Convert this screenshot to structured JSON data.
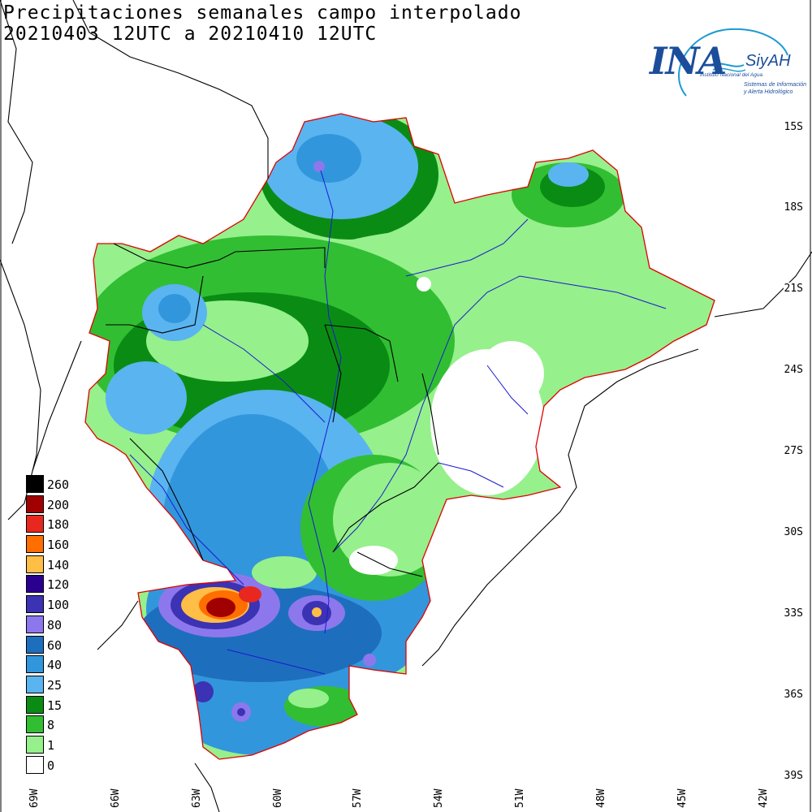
{
  "title": {
    "line1": "Precipitaciones semanales campo interpolado",
    "line2": "20210403 12UTC a 20210410 12UTC"
  },
  "logo": {
    "name": "INA",
    "system": "SiyAH",
    "institution": "Instituto Nacional del Agua",
    "tagline1": "Sistemas de Información",
    "tagline2": "y Alerta Hidrológico"
  },
  "latitude_labels": [
    "15S",
    "18S",
    "21S",
    "24S",
    "27S",
    "30S",
    "33S",
    "36S",
    "39S"
  ],
  "longitude_labels": [
    "69W",
    "66W",
    "63W",
    "60W",
    "57W",
    "54W",
    "51W",
    "48W",
    "45W",
    "42W"
  ],
  "legend": [
    {
      "label": "260",
      "color": "#000000"
    },
    {
      "label": "200",
      "color": "#a00000"
    },
    {
      "label": "180",
      "color": "#e8281e"
    },
    {
      "label": "160",
      "color": "#ff6e00"
    },
    {
      "label": "140",
      "color": "#ffbe46"
    },
    {
      "label": "120",
      "color": "#2a0090"
    },
    {
      "label": "100",
      "color": "#3c32b4"
    },
    {
      "label": "80",
      "color": "#8c78ec"
    },
    {
      "label": "60",
      "color": "#1e6ebe"
    },
    {
      "label": "40",
      "color": "#3296dc"
    },
    {
      "label": "25",
      "color": "#5ab4f0"
    },
    {
      "label": "15",
      "color": "#0a8c14"
    },
    {
      "label": "8",
      "color": "#32be32"
    },
    {
      "label": "1",
      "color": "#96f08c"
    },
    {
      "label": "0",
      "color": "#ffffff"
    }
  ]
}
